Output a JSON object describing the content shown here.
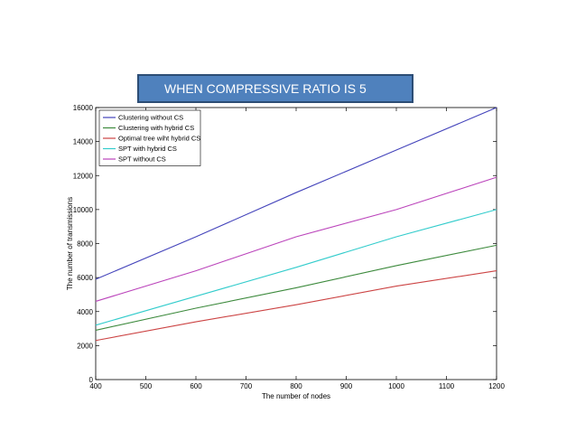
{
  "banner": {
    "text": "WHEN COMPRESSIVE RATIO IS 5"
  },
  "chart_data": {
    "type": "line",
    "title": "WHEN COMPRESSIVE RATIO IS 5",
    "xlabel": "The number of nodes",
    "ylabel": "The number of transmissions",
    "xlim": [
      400,
      1200
    ],
    "ylim": [
      0,
      16000
    ],
    "xticks": [
      400,
      500,
      600,
      700,
      800,
      900,
      1000,
      1100,
      1200
    ],
    "yticks": [
      0,
      2000,
      4000,
      6000,
      8000,
      10000,
      12000,
      14000,
      16000
    ],
    "grid": false,
    "legend_position": "top-left",
    "x": [
      400,
      600,
      800,
      1000,
      1200
    ],
    "series": [
      {
        "name": "Clustering without CS",
        "color": "#4444bb",
        "values": [
          5900,
          8400,
          11000,
          13500,
          16000
        ]
      },
      {
        "name": "Clustering with hybrid CS",
        "color": "#3d8a3d",
        "values": [
          2900,
          4200,
          5400,
          6700,
          7900
        ]
      },
      {
        "name": "Optimal tree wiht hybrid CS",
        "color": "#cc4444",
        "values": [
          2300,
          3400,
          4400,
          5500,
          6400
        ]
      },
      {
        "name": "SPT with hybrid CS",
        "color": "#33cccc",
        "values": [
          3200,
          4900,
          6600,
          8400,
          10000
        ]
      },
      {
        "name": "SPT without CS",
        "color": "#bb44bb",
        "values": [
          4600,
          6400,
          8400,
          10000,
          11900
        ]
      }
    ]
  }
}
